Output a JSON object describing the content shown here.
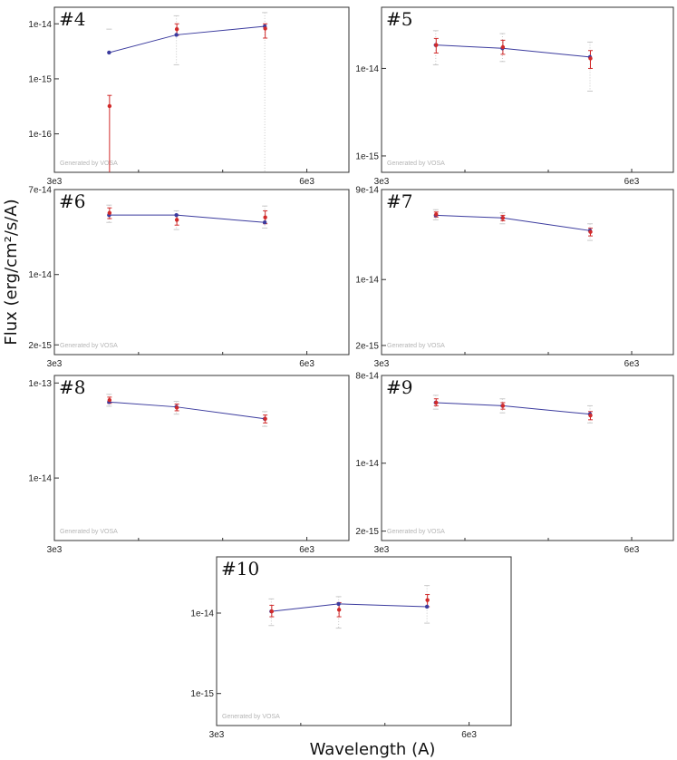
{
  "figure": {
    "xlabel": "Wavelength (A)",
    "ylabel": "Flux (erg/cm²/s/A)",
    "watermark": "Generated by VOSA"
  },
  "colors": {
    "model": "#3b3b9e",
    "observed": "#d12a2a",
    "frame": "#333333",
    "uplimit": "#c8c8c8"
  },
  "chart_data": [
    {
      "type": "scatter",
      "label": "#4",
      "yscale": "log",
      "xlim": [
        3000,
        6500
      ],
      "ylim": [
        2e-17,
        2e-14
      ],
      "x_ticks": [
        {
          "v": 3000,
          "t": "3e3"
        },
        {
          "v": 6000,
          "t": "6e3"
        }
      ],
      "y_ticks": [
        {
          "v": 1e-14,
          "t": "1e-14"
        },
        {
          "v": 1e-15,
          "t": "1e-15"
        },
        {
          "v": 1e-16,
          "t": "1e-16"
        }
      ],
      "x": [
        3650,
        4450,
        5500
      ],
      "model": [
        3e-15,
        6.3e-15,
        9e-15
      ],
      "observed": [
        3.2e-16,
        8e-15,
        8.2e-15
      ],
      "err_lo": [
        1e-18,
        6.2e-15,
        5.5e-15
      ],
      "err_hi": [
        5e-16,
        1e-14,
        1e-14
      ],
      "whisk_lo": [
        null,
        1.8e-15,
        1e-18
      ],
      "whisk_hi": [
        8e-15,
        1.4e-14,
        1.6e-14
      ]
    },
    {
      "type": "scatter",
      "label": "#5",
      "yscale": "log",
      "xlim": [
        3000,
        6500
      ],
      "ylim": [
        6.5e-16,
        5e-14
      ],
      "x_ticks": [
        {
          "v": 3000,
          "t": "3e3"
        },
        {
          "v": 6000,
          "t": "6e3"
        }
      ],
      "y_ticks": [
        {
          "v": 1e-14,
          "t": "1e-14"
        },
        {
          "v": 1e-15,
          "t": "1e-15"
        }
      ],
      "x": [
        3650,
        4450,
        5500
      ],
      "model": [
        1.85e-14,
        1.7e-14,
        1.35e-14
      ],
      "observed": [
        1.85e-14,
        1.75e-14,
        1.3e-14
      ],
      "err_lo": [
        1.5e-14,
        1.45e-14,
        1e-14
      ],
      "err_hi": [
        2.2e-14,
        2.1e-14,
        1.6e-14
      ],
      "whisk_lo": [
        1.1e-14,
        1.2e-14,
        5.5e-15
      ],
      "whisk_hi": [
        2.7e-14,
        2.5e-14,
        2e-14
      ]
    },
    {
      "type": "scatter",
      "label": "#6",
      "yscale": "log",
      "xlim": [
        3000,
        6500
      ],
      "ylim": [
        1.6e-15,
        7e-14
      ],
      "x_ticks": [
        {
          "v": 3000,
          "t": "3e3"
        },
        {
          "v": 6000,
          "t": "6e3"
        }
      ],
      "y_ticks": [
        {
          "v": 7e-14,
          "t": "7e-14"
        },
        {
          "v": 1e-14,
          "t": "1e-14"
        },
        {
          "v": 2e-15,
          "t": "2e-15"
        }
      ],
      "x": [
        3650,
        4450,
        5500
      ],
      "model": [
        3.9e-14,
        3.9e-14,
        3.3e-14
      ],
      "observed": [
        4.1e-14,
        3.5e-14,
        3.7e-14
      ],
      "err_lo": [
        3.6e-14,
        3.1e-14,
        3.2e-14
      ],
      "err_hi": [
        4.6e-14,
        3.9e-14,
        4.3e-14
      ],
      "whisk_lo": [
        3.3e-14,
        2.8e-14,
        2.9e-14
      ],
      "whisk_hi": [
        4.9e-14,
        4.3e-14,
        4.8e-14
      ]
    },
    {
      "type": "scatter",
      "label": "#7",
      "yscale": "log",
      "xlim": [
        3000,
        6500
      ],
      "ylim": [
        1.6e-15,
        9e-14
      ],
      "x_ticks": [
        {
          "v": 3000,
          "t": "3e3"
        },
        {
          "v": 6000,
          "t": "6e3"
        }
      ],
      "y_ticks": [
        {
          "v": 9e-14,
          "t": "9e-14"
        },
        {
          "v": 1e-14,
          "t": "1e-14"
        },
        {
          "v": 2e-15,
          "t": "2e-15"
        }
      ],
      "x": [
        3650,
        4450,
        5500
      ],
      "model": [
        4.8e-14,
        4.5e-14,
        3.3e-14
      ],
      "observed": [
        4.9e-14,
        4.5e-14,
        3.2e-14
      ],
      "err_lo": [
        4.6e-14,
        4.2e-14,
        2.9e-14
      ],
      "err_hi": [
        5.2e-14,
        4.8e-14,
        3.5e-14
      ],
      "whisk_lo": [
        4.3e-14,
        3.9e-14,
        2.6e-14
      ],
      "whisk_hi": [
        5.5e-14,
        5.1e-14,
        3.9e-14
      ]
    },
    {
      "type": "scatter",
      "label": "#8",
      "yscale": "log",
      "xlim": [
        3000,
        6500
      ],
      "ylim": [
        2.2e-15,
        1.2e-13
      ],
      "x_ticks": [
        {
          "v": 3000,
          "t": "3e3"
        },
        {
          "v": 6000,
          "t": "6e3"
        }
      ],
      "y_ticks": [
        {
          "v": 1e-13,
          "t": "1e-13"
        },
        {
          "v": 1e-14,
          "t": "1e-14"
        }
      ],
      "x": [
        3650,
        4450,
        5500
      ],
      "model": [
        6.3e-14,
        5.6e-14,
        4.2e-14
      ],
      "observed": [
        6.6e-14,
        5.5e-14,
        4.2e-14
      ],
      "err_lo": [
        6.1e-14,
        5.1e-14,
        3.8e-14
      ],
      "err_hi": [
        7.1e-14,
        6e-14,
        4.6e-14
      ],
      "whisk_lo": [
        5.7e-14,
        4.7e-14,
        3.5e-14
      ],
      "whisk_hi": [
        7.6e-14,
        6.4e-14,
        5e-14
      ]
    },
    {
      "type": "scatter",
      "label": "#9",
      "yscale": "log",
      "xlim": [
        3000,
        6500
      ],
      "ylim": [
        1.6e-15,
        8e-14
      ],
      "x_ticks": [
        {
          "v": 3000,
          "t": "3e3"
        },
        {
          "v": 6000,
          "t": "6e3"
        }
      ],
      "y_ticks": [
        {
          "v": 8e-14,
          "t": "8e-14"
        },
        {
          "v": 1e-14,
          "t": "1e-14"
        },
        {
          "v": 2e-15,
          "t": "2e-15"
        }
      ],
      "x": [
        3650,
        4450,
        5500
      ],
      "model": [
        4.2e-14,
        3.9e-14,
        3.2e-14
      ],
      "observed": [
        4.2e-14,
        3.9e-14,
        3.1e-14
      ],
      "err_lo": [
        3.9e-14,
        3.6e-14,
        2.8e-14
      ],
      "err_hi": [
        4.6e-14,
        4.2e-14,
        3.4e-14
      ],
      "whisk_lo": [
        3.6e-14,
        3.3e-14,
        2.6e-14
      ],
      "whisk_hi": [
        5e-14,
        4.6e-14,
        3.9e-14
      ]
    },
    {
      "type": "scatter",
      "label": "#10",
      "yscale": "log",
      "xlim": [
        3000,
        6500
      ],
      "ylim": [
        4e-16,
        5e-14
      ],
      "x_ticks": [
        {
          "v": 3000,
          "t": "3e3"
        },
        {
          "v": 6000,
          "t": "6e3"
        }
      ],
      "y_ticks": [
        {
          "v": 1e-14,
          "t": "1e-14"
        },
        {
          "v": 1e-15,
          "t": "1e-15"
        }
      ],
      "x": [
        3650,
        4450,
        5500
      ],
      "model": [
        1.05e-14,
        1.3e-14,
        1.2e-14
      ],
      "observed": [
        1.05e-14,
        1.1e-14,
        1.45e-14
      ],
      "err_lo": [
        9e-15,
        9e-15,
        1.2e-14
      ],
      "err_hi": [
        1.25e-14,
        1.35e-14,
        1.7e-14
      ],
      "whisk_lo": [
        7e-15,
        6.5e-15,
        7.5e-15
      ],
      "whisk_hi": [
        1.5e-14,
        1.6e-14,
        2.2e-14
      ]
    }
  ]
}
